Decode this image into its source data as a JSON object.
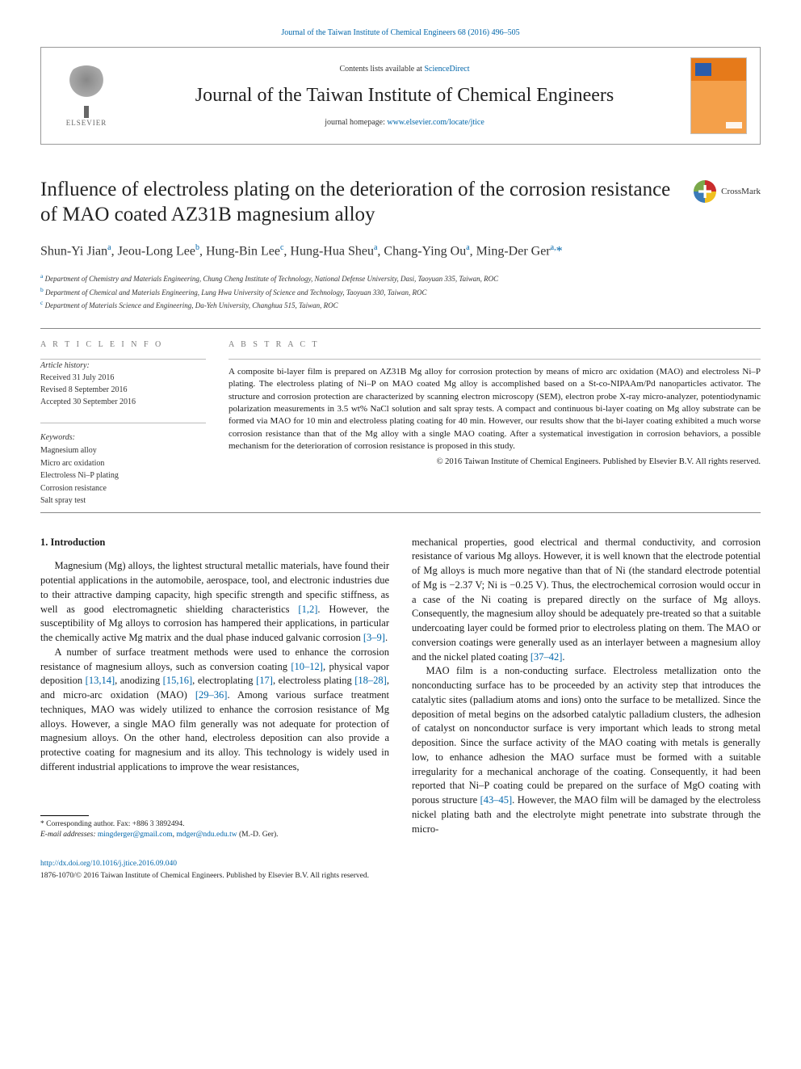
{
  "running_head": "Journal of the Taiwan Institute of Chemical Engineers 68 (2016) 496–505",
  "header": {
    "contents_prefix": "Contents lists available at ",
    "contents_link": "ScienceDirect",
    "journal_name": "Journal of the Taiwan Institute of Chemical Engineers",
    "homepage_prefix": "journal homepage: ",
    "homepage_url": "www.elsevier.com/locate/jtice",
    "publisher": "ELSEVIER"
  },
  "crossmark_label": "CrossMark",
  "title": "Influence of electroless plating on the deterioration of the corrosion resistance of MAO coated AZ31B magnesium alloy",
  "authors_html": "Shun-Yi Jian<sup>a</sup>, Jeou-Long Lee<sup>b</sup>, Hung-Bin Lee<sup>c</sup>, Hung-Hua Sheu<sup>a</sup>, Chang-Ying Ou<sup>a</sup>, Ming-Der Ger<sup>a,</sup><span class=\"star\">*</span>",
  "affiliations": [
    {
      "sup": "a",
      "text": "Department of Chemistry and Materials Engineering, Chung Cheng Institute of Technology, National Defense University, Dasi, Taoyuan 335, Taiwan, ROC"
    },
    {
      "sup": "b",
      "text": "Department of Chemical and Materials Engineering, Lung Hwa University of Science and Technology, Taoyuan 330, Taiwan, ROC"
    },
    {
      "sup": "c",
      "text": "Department of Materials Science and Engineering, Da-Yeh University, Changhua 515, Taiwan, ROC"
    }
  ],
  "info": {
    "label": "A R T I C L E   I N F O",
    "history_label": "Article history:",
    "history": [
      "Received 31 July 2016",
      "Revised 8 September 2016",
      "Accepted 30 September 2016"
    ],
    "keywords_label": "Keywords:",
    "keywords": [
      "Magnesium alloy",
      "Micro arc oxidation",
      "Electroless Ni–P plating",
      "Corrosion resistance",
      "Salt spray test"
    ]
  },
  "abstract": {
    "label": "A B S T R A C T",
    "text": "A composite bi-layer film is prepared on AZ31B Mg alloy for corrosion protection by means of micro arc oxidation (MAO) and electroless Ni–P plating. The electroless plating of Ni–P on MAO coated Mg alloy is accomplished based on a St-co-NIPAAm/Pd nanoparticles activator. The structure and corrosion protection are characterized by scanning electron microscopy (SEM), electron probe X-ray micro-analyzer, potentiodynamic polarization measurements in 3.5 wt% NaCl solution and salt spray tests. A compact and continuous bi-layer coating on Mg alloy substrate can be formed via MAO for 10 min and electroless plating coating for 40 min. However, our results show that the bi-layer coating exhibited a much worse corrosion resistance than that of the Mg alloy with a single MAO coating. After a systematical investigation in corrosion behaviors, a possible mechanism for the deterioration of corrosion resistance is proposed in this study.",
    "copyright": "© 2016 Taiwan Institute of Chemical Engineers. Published by Elsevier B.V. All rights reserved."
  },
  "sections": {
    "intro_head": "1. Introduction",
    "col1": {
      "p1": "Magnesium (Mg) alloys, the lightest structural metallic materials, have found their potential applications in the automobile, aerospace, tool, and electronic industries due to their attractive damping capacity, high specific strength and specific stiffness, as well as good electromagnetic shielding characteristics ",
      "c1": "[1,2]",
      "p1b": ". However, the susceptibility of Mg alloys to corrosion has hampered their applications, in particular the chemically active Mg matrix and the dual phase induced galvanic corrosion ",
      "c2": "[3–9]",
      "p1c": ".",
      "p2a": "A number of surface treatment methods were used to enhance the corrosion resistance of magnesium alloys, such as conversion coating ",
      "c3": "[10–12]",
      "p2b": ", physical vapor deposition ",
      "c4": "[13,14]",
      "p2c": ", anodizing ",
      "c5": "[15,16]",
      "p2d": ", electroplating ",
      "c6": "[17]",
      "p2e": ", electroless plating ",
      "c7": "[18–28]",
      "p2f": ", and micro-arc oxidation (MAO) ",
      "c8": "[29–36]",
      "p2g": ". Among various surface treatment techniques, MAO was widely utilized to enhance the corrosion resistance of Mg alloys. However, a single MAO film generally was not adequate for protection of magnesium alloys. On the other hand, electroless deposition can also provide a protective coating for magnesium and its alloy. This technology is widely used in different industrial applications to improve the wear resistances,"
    },
    "col2": {
      "p1a": "mechanical properties, good electrical and thermal conductivity, and corrosion resistance of various Mg alloys. However, it is well known that the electrode potential of Mg alloys is much more negative than that of Ni (the standard electrode potential of Mg is −2.37 V; Ni is −0.25 V). Thus, the electrochemical corrosion would occur in a case of the Ni coating is prepared directly on the surface of Mg alloys. Consequently, the magnesium alloy should be adequately pre-treated so that a suitable undercoating layer could be formed prior to electroless plating on them. The MAO or conversion coatings were generally used as an interlayer between a magnesium alloy and the nickel plated coating ",
      "c1": "[37–42]",
      "p1b": ".",
      "p2a": "MAO film is a non-conducting surface. Electroless metallization onto the nonconducting surface has to be proceeded by an activity step that introduces the catalytic sites (palladium atoms and ions) onto the surface to be metallized. Since the deposition of metal begins on the adsorbed catalytic palladium clusters, the adhesion of catalyst on nonconductor surface is very important which leads to strong metal deposition. Since the surface activity of the MAO coating with metals is generally low, to enhance adhesion the MAO surface must be formed with a suitable irregularity for a mechanical anchorage of the coating. Consequently, it had been reported that Ni–P coating could be prepared on the surface of MgO coating with porous structure ",
      "c2": "[43–45]",
      "p2b": ". However, the MAO film will be damaged by the electroless nickel plating bath and the electrolyte might penetrate into substrate through the micro-"
    }
  },
  "footnote": {
    "corr": "* Corresponding author. Fax: +886 3 3892494.",
    "email_label": "E-mail addresses:",
    "email1": "mingderger@gmail.com",
    "email2": "mdger@ndu.edu.tw",
    "email_tail": " (M.-D. Ger)."
  },
  "footer": {
    "doi": "http://dx.doi.org/10.1016/j.jtice.2016.09.040",
    "issn_line": "1876-1070/© 2016 Taiwan Institute of Chemical Engineers. Published by Elsevier B.V. All rights reserved."
  },
  "colors": {
    "link": "#0066aa",
    "text": "#1a1a1a",
    "rule": "#888888",
    "cover_top": "#e67a1a",
    "cover_bottom": "#f4a04a"
  }
}
